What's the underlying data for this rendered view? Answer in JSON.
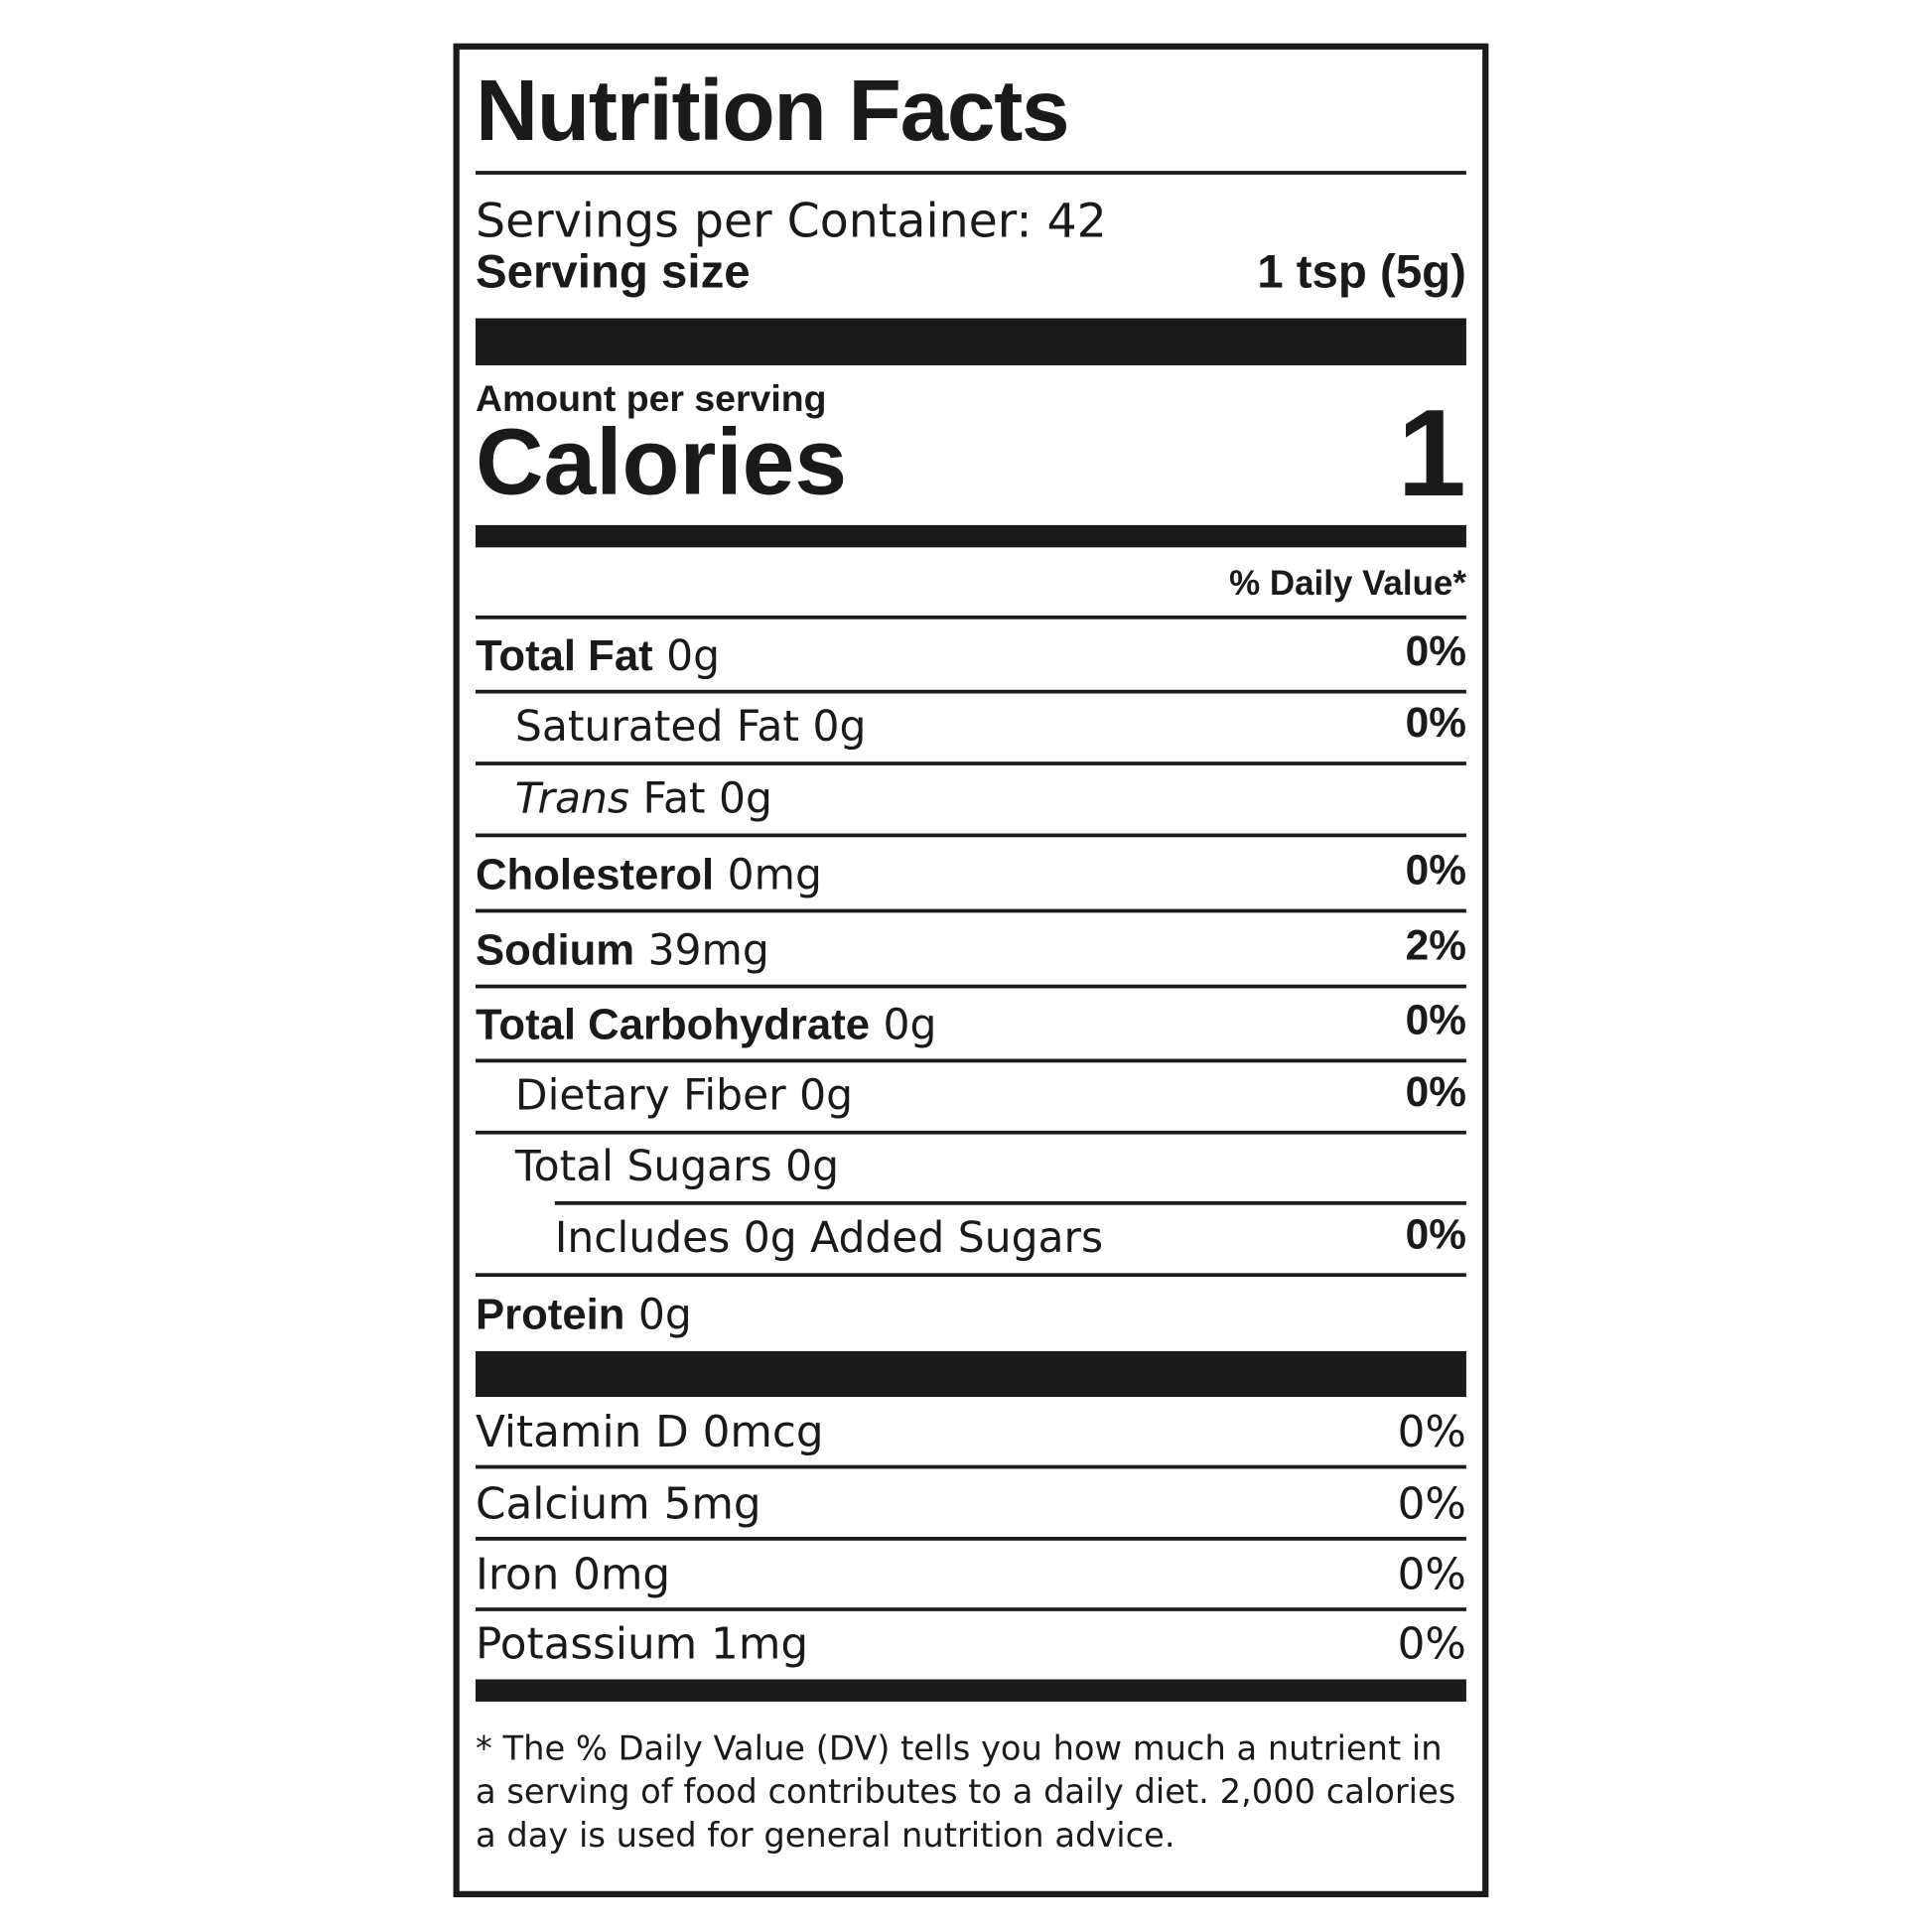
{
  "header": {
    "title": "Nutrition Facts"
  },
  "servings_per_container": "Servings per Container: 42",
  "serving_size": {
    "label": "Serving size",
    "value": "1 tsp (5g)"
  },
  "amount_per_serving": "Amount per serving",
  "calories": {
    "label": "Calories",
    "value": "1"
  },
  "daily_value_header": "% Daily Value*",
  "nutrients": [
    {
      "name": "Total Fat",
      "amount": "0g",
      "dv": "0%"
    },
    {
      "name": "Saturated Fat",
      "amount": "0g",
      "dv": "0%"
    },
    {
      "prefix": "Trans",
      "name": "Fat",
      "amount": "0g"
    },
    {
      "name": "Cholesterol",
      "amount": "0mg",
      "dv": "0%"
    },
    {
      "name": "Sodium",
      "amount": "39mg",
      "dv": "2%"
    },
    {
      "name": "Total Carbohydrate",
      "amount": "0g",
      "dv": "0%"
    },
    {
      "name": "Dietary Fiber",
      "amount": "0g",
      "dv": "0%"
    },
    {
      "name": "Total Sugars",
      "amount": "0g"
    },
    {
      "name": "Includes 0g Added Sugars",
      "dv": "0%"
    },
    {
      "name": "Protein",
      "amount": "0g"
    }
  ],
  "vitamins": [
    {
      "name": "Vitamin D 0mcg",
      "dv": "0%"
    },
    {
      "name": "Calcium 5mg",
      "dv": "0%"
    },
    {
      "name": "Iron 0mg",
      "dv": "0%"
    },
    {
      "name": "Potassium 1mg",
      "dv": "0%"
    }
  ],
  "footnote": "* The % Daily Value (DV) tells you how much a nutrient in a serving of food contributes to a daily diet. 2,000 calories a day is used for general nutrition advice."
}
